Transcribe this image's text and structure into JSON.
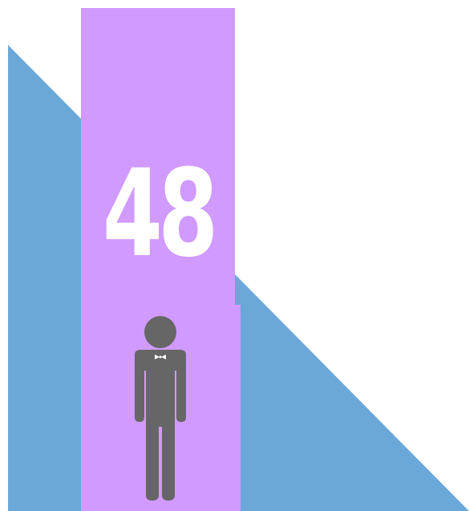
{
  "colors": {
    "background": "#ffffff",
    "triangle": "#6aa8d9",
    "bar": "#d09aff",
    "number": "#ffffff",
    "person": "#666666"
  },
  "main": {
    "value": "48",
    "icon": "person-with-bowtie-icon"
  }
}
